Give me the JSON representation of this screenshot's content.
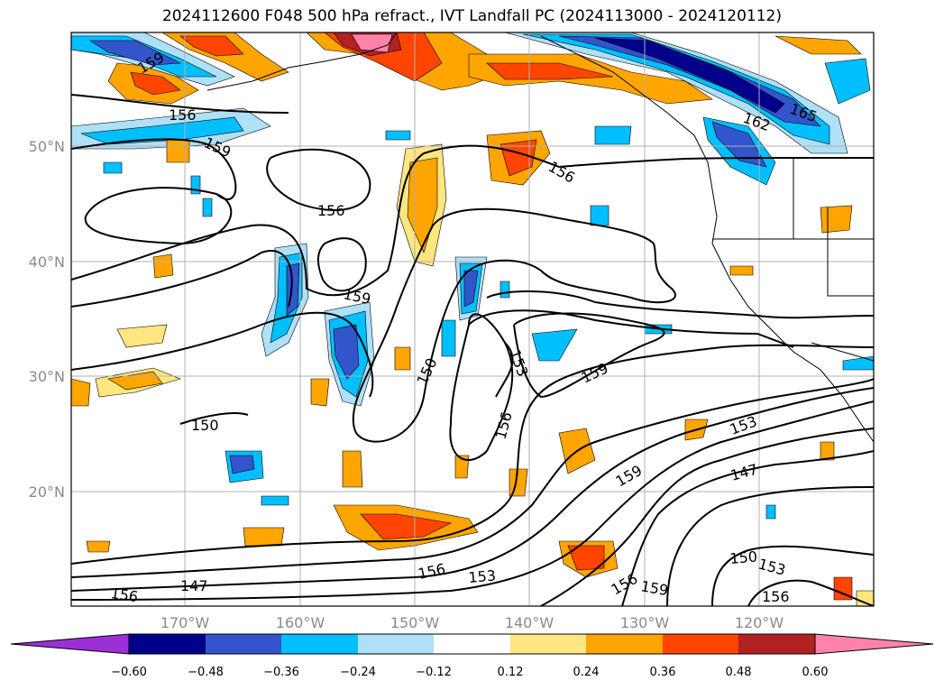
{
  "title": "2024112600 F048 500 hPa refract., IVT Landfall PC (2024113000 - 2024120112)",
  "lat_labels": [
    "50°N",
    "40°N",
    "30°N",
    "20°N"
  ],
  "lon_labels": [
    "170°W",
    "160°W",
    "150°W",
    "140°W",
    "130°W",
    "120°W"
  ],
  "contour_labels": [
    "159",
    "156",
    "159",
    "156",
    "159",
    "150",
    "153",
    "156",
    "159",
    "150",
    "156",
    "147",
    "156",
    "153",
    "156",
    "159",
    "153",
    "147",
    "150",
    "153",
    "156",
    "156",
    "159",
    "165",
    "162"
  ],
  "colorbar": {
    "ticks": [
      "−0.60",
      "−0.48",
      "−0.36",
      "−0.24",
      "−0.12",
      "0.12",
      "0.24",
      "0.36",
      "0.48",
      "0.60"
    ],
    "colors": [
      "#9b30d6",
      "#00008b",
      "#3355cc",
      "#00bfff",
      "#aee0f8",
      "#ffffff",
      "#ffe680",
      "#ffa500",
      "#ff4500",
      "#b22222",
      "#ff82ab"
    ]
  }
}
